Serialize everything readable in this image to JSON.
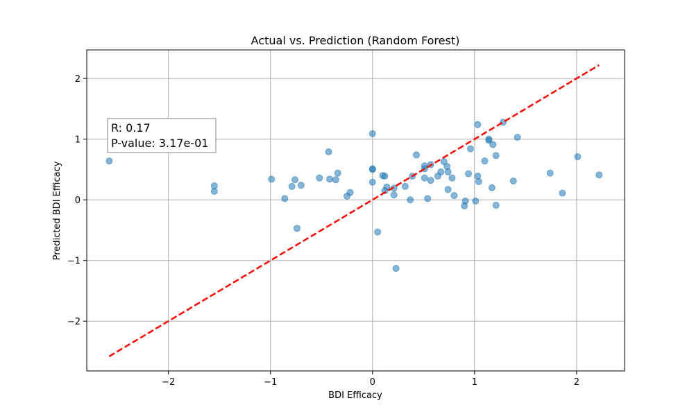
{
  "chart_data": {
    "type": "scatter",
    "title": "Actual vs. Prediction (Random Forest)",
    "xlabel": "BDI Efficacy",
    "ylabel": "Predicted BDI Efficacy",
    "xlim": [
      -2.8,
      2.47
    ],
    "ylim": [
      -2.82,
      2.47
    ],
    "xticks": [
      -2,
      -1,
      0,
      1,
      2
    ],
    "yticks": [
      -2,
      -1,
      0,
      1,
      2
    ],
    "xtick_labels": [
      "−2",
      "−1",
      "0",
      "1",
      "2"
    ],
    "ytick_labels": [
      "−2",
      "−1",
      "0",
      "1",
      "2"
    ],
    "grid": true,
    "annotation": {
      "lines": [
        "R: 0.17",
        "P-value: 3.17e-01"
      ],
      "placement": "upper-left"
    },
    "point_color": "#1f77b4",
    "line_color": "#ff0000",
    "reference_line": {
      "style": "dashed",
      "x": [
        -2.58,
        2.22
      ],
      "y": [
        -2.58,
        2.22
      ]
    },
    "points": [
      {
        "x": -2.58,
        "y": 0.64
      },
      {
        "x": -1.55,
        "y": 0.23
      },
      {
        "x": -1.55,
        "y": 0.14
      },
      {
        "x": -0.99,
        "y": 0.34
      },
      {
        "x": -0.86,
        "y": 0.02
      },
      {
        "x": -0.79,
        "y": 0.22
      },
      {
        "x": -0.76,
        "y": 0.33
      },
      {
        "x": -0.74,
        "y": -0.47
      },
      {
        "x": -0.7,
        "y": 0.24
      },
      {
        "x": -0.52,
        "y": 0.36
      },
      {
        "x": -0.43,
        "y": 0.79
      },
      {
        "x": -0.42,
        "y": 0.34
      },
      {
        "x": -0.36,
        "y": 0.33
      },
      {
        "x": -0.34,
        "y": 0.44
      },
      {
        "x": -0.25,
        "y": 0.06
      },
      {
        "x": -0.22,
        "y": 0.12
      },
      {
        "x": 0.0,
        "y": 1.09
      },
      {
        "x": 0.0,
        "y": 0.51
      },
      {
        "x": 0.0,
        "y": 0.5
      },
      {
        "x": 0.0,
        "y": 0.29
      },
      {
        "x": 0.05,
        "y": -0.53
      },
      {
        "x": 0.1,
        "y": 0.4
      },
      {
        "x": 0.12,
        "y": 0.39
      },
      {
        "x": 0.12,
        "y": 0.15
      },
      {
        "x": 0.14,
        "y": 0.21
      },
      {
        "x": 0.21,
        "y": 0.19
      },
      {
        "x": 0.21,
        "y": 0.08
      },
      {
        "x": 0.23,
        "y": -1.13
      },
      {
        "x": 0.32,
        "y": 0.22
      },
      {
        "x": 0.37,
        "y": 0.0
      },
      {
        "x": 0.39,
        "y": 0.39
      },
      {
        "x": 0.43,
        "y": 0.74
      },
      {
        "x": 0.51,
        "y": 0.56
      },
      {
        "x": 0.51,
        "y": 0.51
      },
      {
        "x": 0.51,
        "y": 0.36
      },
      {
        "x": 0.54,
        "y": 0.02
      },
      {
        "x": 0.57,
        "y": 0.58
      },
      {
        "x": 0.57,
        "y": 0.32
      },
      {
        "x": 0.64,
        "y": 0.39
      },
      {
        "x": 0.67,
        "y": 0.46
      },
      {
        "x": 0.7,
        "y": 0.63
      },
      {
        "x": 0.73,
        "y": 0.55
      },
      {
        "x": 0.74,
        "y": 0.46
      },
      {
        "x": 0.74,
        "y": 0.17
      },
      {
        "x": 0.78,
        "y": 0.36
      },
      {
        "x": 0.8,
        "y": 0.07
      },
      {
        "x": 0.9,
        "y": -0.1
      },
      {
        "x": 0.91,
        "y": -0.02
      },
      {
        "x": 0.94,
        "y": 0.43
      },
      {
        "x": 0.96,
        "y": 0.84
      },
      {
        "x": 1.01,
        "y": -0.02
      },
      {
        "x": 1.03,
        "y": 1.24
      },
      {
        "x": 1.03,
        "y": 0.39
      },
      {
        "x": 1.04,
        "y": 0.3
      },
      {
        "x": 1.1,
        "y": 0.64
      },
      {
        "x": 1.14,
        "y": 1.0
      },
      {
        "x": 1.14,
        "y": 0.98
      },
      {
        "x": 1.17,
        "y": 0.2
      },
      {
        "x": 1.18,
        "y": 0.91
      },
      {
        "x": 1.21,
        "y": 0.73
      },
      {
        "x": 1.21,
        "y": -0.09
      },
      {
        "x": 1.28,
        "y": 1.28
      },
      {
        "x": 1.38,
        "y": 0.31
      },
      {
        "x": 1.42,
        "y": 1.03
      },
      {
        "x": 1.74,
        "y": 0.44
      },
      {
        "x": 1.86,
        "y": 0.11
      },
      {
        "x": 2.01,
        "y": 0.71
      },
      {
        "x": 2.22,
        "y": 0.41
      }
    ]
  }
}
